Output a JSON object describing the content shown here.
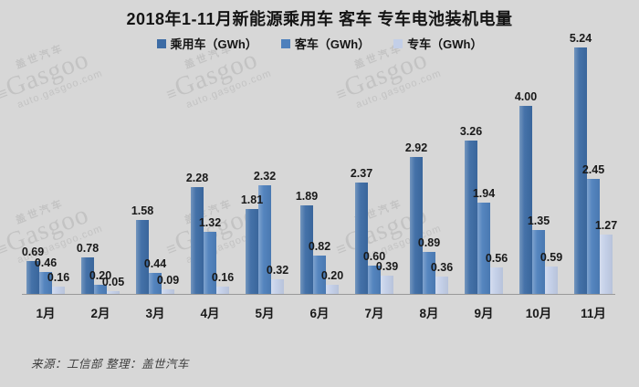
{
  "title": "2018年1-11月新能源乘用车 客车 专车电池装机电量",
  "source_note": "来源：工信部 整理：盖世汽车",
  "watermark": {
    "brand_cn": "盖世汽车",
    "logo_glyph": "≡",
    "brand_en": "Gasgoo",
    "url": "auto.gasgoo.com"
  },
  "colors": {
    "background": "#d7d7d7",
    "axis": "#999999",
    "value_label": "#191919",
    "watermark": "#c3c3c3"
  },
  "chart_data": {
    "type": "bar",
    "title": "2018年1-11月新能源乘用车 客车 专车电池装机电量",
    "xlabel": "",
    "ylabel": "GWh",
    "ylim": [
      0,
      5.5
    ],
    "grid": false,
    "legend_position": "top",
    "value_labels": true,
    "categories": [
      "1月",
      "2月",
      "3月",
      "4月",
      "5月",
      "6月",
      "7月",
      "8月",
      "9月",
      "10月",
      "11月"
    ],
    "series": [
      {
        "name": "乘用车（GWh）",
        "key": "passenger-car",
        "color": "#3d6ca5",
        "values": [
          0.69,
          0.78,
          1.58,
          2.28,
          1.81,
          1.89,
          2.37,
          2.92,
          3.26,
          4.0,
          5.24
        ]
      },
      {
        "name": "客车（GWh）",
        "key": "bus",
        "color": "#4e80bc",
        "values": [
          0.46,
          0.2,
          0.44,
          1.32,
          2.32,
          0.82,
          0.6,
          0.89,
          1.94,
          1.35,
          2.45
        ]
      },
      {
        "name": "专车（GWh）",
        "key": "special-vehicle",
        "color": "#c3cfe8",
        "values": [
          0.16,
          0.05,
          0.09,
          0.16,
          0.32,
          0.2,
          0.39,
          0.36,
          0.56,
          0.59,
          1.27
        ]
      }
    ]
  }
}
